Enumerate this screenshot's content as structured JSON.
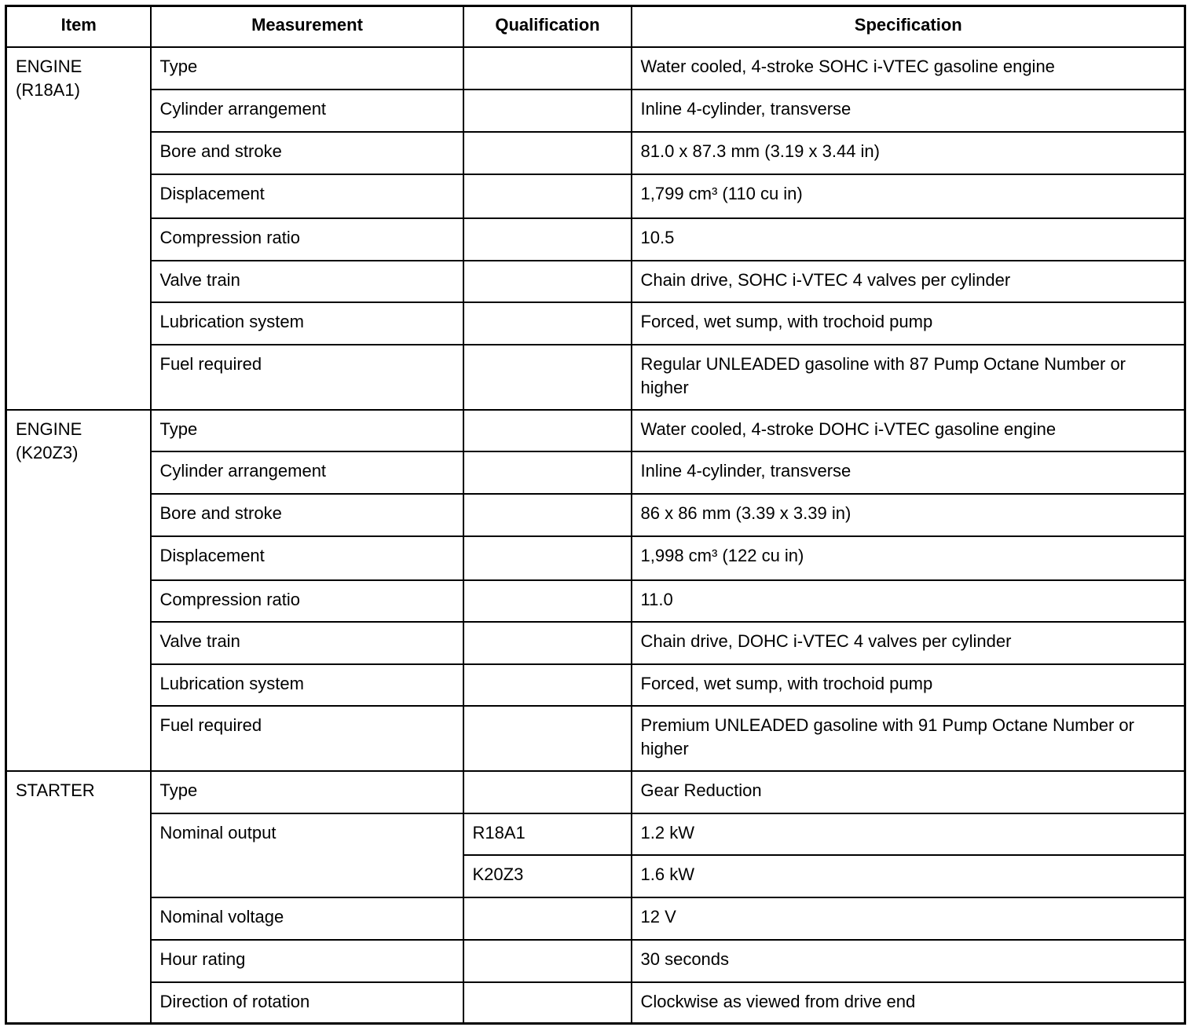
{
  "headers": {
    "item": "Item",
    "measurement": "Measurement",
    "qualification": "Qualification",
    "specification": "Specification"
  },
  "groups": [
    {
      "item": [
        "ENGINE",
        "(R18A1)"
      ],
      "rows": [
        {
          "measurement": "Type",
          "qualification": "",
          "specification": "Water cooled, 4-stroke SOHC i-VTEC gasoline engine"
        },
        {
          "measurement": "Cylinder arrangement",
          "qualification": "",
          "specification": "Inline 4-cylinder, transverse"
        },
        {
          "measurement": "Bore and stroke",
          "qualification": "",
          "specification": "81.0 x 87.3 mm (3.19 x 3.44 in)"
        },
        {
          "measurement": "Displacement",
          "qualification": "",
          "specification": "1,799 cm³  (110 cu in)"
        },
        {
          "measurement": "Compression ratio",
          "qualification": "",
          "specification": "10.5"
        },
        {
          "measurement": "Valve train",
          "qualification": "",
          "specification": "Chain drive, SOHC i-VTEC 4 valves per cylinder"
        },
        {
          "measurement": "Lubrication system",
          "qualification": "",
          "specification": "Forced, wet sump, with trochoid pump"
        },
        {
          "measurement": "Fuel required",
          "qualification": "",
          "specification": "Regular UNLEADED gasoline with 87 Pump Octane Number or higher"
        }
      ]
    },
    {
      "item": [
        "ENGINE",
        "(K20Z3)"
      ],
      "rows": [
        {
          "measurement": "Type",
          "qualification": "",
          "specification": "Water cooled, 4-stroke DOHC i-VTEC gasoline engine"
        },
        {
          "measurement": "Cylinder arrangement",
          "qualification": "",
          "specification": "Inline 4-cylinder, transverse"
        },
        {
          "measurement": "Bore and stroke",
          "qualification": "",
          "specification": "86 x 86 mm (3.39 x 3.39 in)"
        },
        {
          "measurement": "Displacement",
          "qualification": "",
          "specification": "1,998 cm³  (122 cu in)"
        },
        {
          "measurement": "Compression ratio",
          "qualification": "",
          "specification": "11.0"
        },
        {
          "measurement": "Valve train",
          "qualification": "",
          "specification": "Chain drive, DOHC i-VTEC 4 valves per cylinder"
        },
        {
          "measurement": "Lubrication system",
          "qualification": "",
          "specification": "Forced, wet sump, with trochoid pump"
        },
        {
          "measurement": "Fuel required",
          "qualification": "",
          "specification": "Premium UNLEADED gasoline with 91 Pump Octane Number or higher"
        }
      ]
    },
    {
      "item": [
        "STARTER"
      ],
      "rows": [
        {
          "measurement": "Type",
          "qualification": "",
          "specification": "Gear Reduction"
        },
        {
          "measurement": "Nominal output",
          "measurement_rowspan": 2,
          "qualification": "R18A1",
          "specification": "1.2 kW"
        },
        {
          "measurement_merged": true,
          "qualification": "K20Z3",
          "specification": "1.6 kW"
        },
        {
          "measurement": "Nominal voltage",
          "qualification": "",
          "specification": "12 V"
        },
        {
          "measurement": "Hour rating",
          "qualification": "",
          "specification": "30 seconds"
        },
        {
          "measurement": "Direction of rotation",
          "qualification": "",
          "specification": "Clockwise as viewed from drive end"
        }
      ]
    }
  ]
}
